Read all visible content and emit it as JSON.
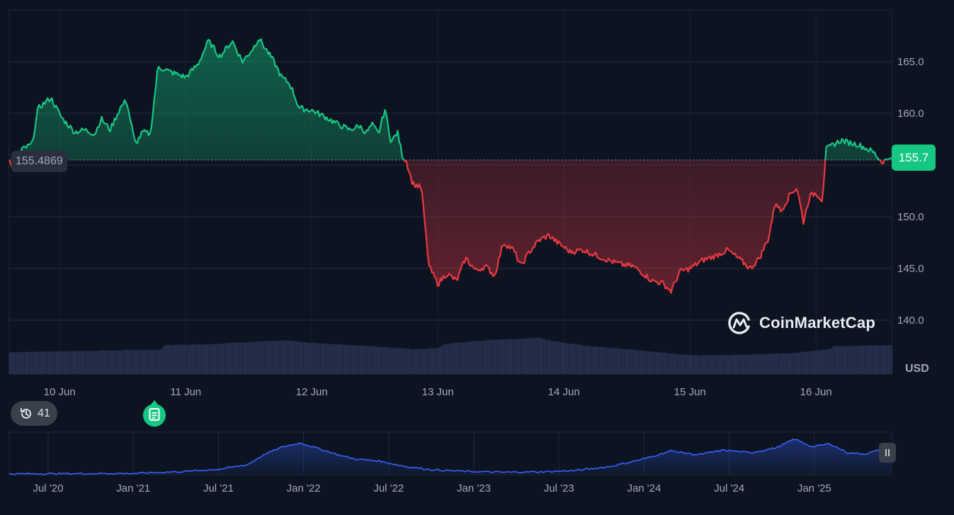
{
  "chart_data": {
    "type": "area",
    "title": "",
    "xlabel": "",
    "ylabel": "USD",
    "currency": "USD",
    "ylim": [
      137,
      170
    ],
    "y_ticks": [
      "140.0",
      "145.0",
      "150.0",
      "155.0",
      "160.0",
      "165.0"
    ],
    "x_ticks": [
      "10 Jun",
      "11 Jun",
      "12 Jun",
      "13 Jun",
      "14 Jun",
      "15 Jun",
      "16 Jun"
    ],
    "x_day_start": 9.6,
    "x_day_end": 16.6,
    "baseline": 155.4869,
    "baseline_label": "155.4869",
    "last_price": 155.7,
    "last_price_label": "155.7",
    "colors": {
      "up": "#16c784",
      "down": "#ea3943",
      "volume": "#2c3657",
      "grid": "#222a3b"
    },
    "price_keypoints": [
      [
        9.6,
        155.5
      ],
      [
        9.64,
        154.2
      ],
      [
        9.7,
        156.5
      ],
      [
        9.78,
        157.0
      ],
      [
        9.83,
        160.5
      ],
      [
        9.93,
        161.5
      ],
      [
        10.02,
        159.5
      ],
      [
        10.12,
        158.2
      ],
      [
        10.2,
        158.4
      ],
      [
        10.28,
        158.0
      ],
      [
        10.33,
        159.5
      ],
      [
        10.4,
        158.4
      ],
      [
        10.48,
        160.5
      ],
      [
        10.53,
        161.3
      ],
      [
        10.6,
        157.0
      ],
      [
        10.66,
        158.2
      ],
      [
        10.72,
        158.0
      ],
      [
        10.78,
        164.5
      ],
      [
        10.88,
        164.0
      ],
      [
        11.0,
        163.5
      ],
      [
        11.1,
        164.8
      ],
      [
        11.18,
        167.0
      ],
      [
        11.27,
        165.5
      ],
      [
        11.37,
        167.0
      ],
      [
        11.45,
        165.0
      ],
      [
        11.53,
        166.2
      ],
      [
        11.58,
        167.3
      ],
      [
        11.62,
        166.5
      ],
      [
        11.7,
        165.0
      ],
      [
        11.76,
        163.5
      ],
      [
        11.83,
        162.8
      ],
      [
        11.9,
        160.5
      ],
      [
        12.0,
        160.3
      ],
      [
        12.1,
        159.7
      ],
      [
        12.2,
        159.0
      ],
      [
        12.3,
        158.4
      ],
      [
        12.38,
        158.8
      ],
      [
        12.43,
        158.1
      ],
      [
        12.48,
        158.9
      ],
      [
        12.53,
        158.0
      ],
      [
        12.58,
        160.4
      ],
      [
        12.63,
        157.2
      ],
      [
        12.68,
        158.2
      ],
      [
        12.72,
        155.8
      ],
      [
        12.75,
        155.4
      ],
      [
        12.8,
        153.2
      ],
      [
        12.87,
        152.8
      ],
      [
        12.93,
        145.2
      ],
      [
        13.0,
        143.5
      ],
      [
        13.07,
        144.5
      ],
      [
        13.15,
        143.8
      ],
      [
        13.22,
        146.0
      ],
      [
        13.3,
        144.8
      ],
      [
        13.38,
        145.2
      ],
      [
        13.45,
        144.3
      ],
      [
        13.52,
        147.5
      ],
      [
        13.6,
        146.8
      ],
      [
        13.66,
        145.2
      ],
      [
        13.72,
        146.5
      ],
      [
        13.8,
        147.7
      ],
      [
        13.88,
        148.2
      ],
      [
        13.95,
        147.5
      ],
      [
        14.05,
        146.6
      ],
      [
        14.15,
        146.8
      ],
      [
        14.25,
        146.3
      ],
      [
        14.35,
        145.8
      ],
      [
        14.45,
        145.4
      ],
      [
        14.55,
        145.2
      ],
      [
        14.62,
        144.6
      ],
      [
        14.7,
        143.8
      ],
      [
        14.78,
        143.6
      ],
      [
        14.85,
        142.8
      ],
      [
        14.92,
        144.7
      ],
      [
        15.0,
        145.0
      ],
      [
        15.1,
        145.8
      ],
      [
        15.2,
        146.2
      ],
      [
        15.3,
        146.8
      ],
      [
        15.4,
        145.8
      ],
      [
        15.48,
        145.0
      ],
      [
        15.55,
        146.0
      ],
      [
        15.62,
        147.8
      ],
      [
        15.68,
        151.5
      ],
      [
        15.72,
        150.5
      ],
      [
        15.8,
        152.3
      ],
      [
        15.85,
        152.8
      ],
      [
        15.9,
        149.5
      ],
      [
        15.95,
        152.0
      ],
      [
        16.0,
        152.3
      ],
      [
        16.05,
        151.6
      ],
      [
        16.08,
        156.5
      ],
      [
        16.14,
        157.0
      ],
      [
        16.2,
        157.4
      ],
      [
        16.25,
        157.2
      ],
      [
        16.33,
        157.0
      ],
      [
        16.4,
        156.6
      ],
      [
        16.46,
        156.2
      ],
      [
        16.52,
        155.3
      ],
      [
        16.56,
        155.5
      ],
      [
        16.6,
        155.7
      ]
    ],
    "volume_keypoints": [
      [
        9.6,
        0.42
      ],
      [
        10.0,
        0.44
      ],
      [
        10.5,
        0.46
      ],
      [
        10.8,
        0.47
      ],
      [
        10.83,
        0.56
      ],
      [
        11.2,
        0.58
      ],
      [
        11.6,
        0.63
      ],
      [
        11.8,
        0.65
      ],
      [
        12.0,
        0.6
      ],
      [
        12.4,
        0.55
      ],
      [
        12.8,
        0.48
      ],
      [
        13.0,
        0.5
      ],
      [
        13.05,
        0.58
      ],
      [
        13.4,
        0.66
      ],
      [
        13.8,
        0.7
      ],
      [
        13.9,
        0.64
      ],
      [
        14.2,
        0.54
      ],
      [
        14.6,
        0.46
      ],
      [
        14.9,
        0.38
      ],
      [
        15.1,
        0.36
      ],
      [
        15.5,
        0.38
      ],
      [
        15.8,
        0.4
      ],
      [
        16.1,
        0.48
      ],
      [
        16.14,
        0.54
      ],
      [
        16.6,
        0.56
      ]
    ],
    "navigator": {
      "x_ticks": [
        "Jul '20",
        "Jan '21",
        "Jul '21",
        "Jan '22",
        "Jul '22",
        "Jan '23",
        "Jul '23",
        "Jan '24",
        "Jul '24",
        "Jan '25"
      ],
      "keypoints": [
        [
          0.0,
          0.02
        ],
        [
          0.14,
          0.03
        ],
        [
          0.2,
          0.08
        ],
        [
          0.24,
          0.14
        ],
        [
          0.27,
          0.25
        ],
        [
          0.29,
          0.52
        ],
        [
          0.31,
          0.7
        ],
        [
          0.33,
          0.8
        ],
        [
          0.35,
          0.66
        ],
        [
          0.37,
          0.52
        ],
        [
          0.39,
          0.4
        ],
        [
          0.42,
          0.34
        ],
        [
          0.45,
          0.2
        ],
        [
          0.48,
          0.12
        ],
        [
          0.52,
          0.08
        ],
        [
          0.56,
          0.06
        ],
        [
          0.6,
          0.07
        ],
        [
          0.64,
          0.1
        ],
        [
          0.68,
          0.2
        ],
        [
          0.72,
          0.4
        ],
        [
          0.75,
          0.6
        ],
        [
          0.78,
          0.5
        ],
        [
          0.81,
          0.62
        ],
        [
          0.84,
          0.55
        ],
        [
          0.87,
          0.68
        ],
        [
          0.89,
          0.9
        ],
        [
          0.91,
          0.7
        ],
        [
          0.93,
          0.78
        ],
        [
          0.95,
          0.55
        ],
        [
          0.97,
          0.52
        ],
        [
          0.99,
          0.65
        ],
        [
          1.0,
          0.62
        ]
      ]
    }
  },
  "ui": {
    "events_count": "41",
    "brand": "CoinMarketCap"
  }
}
